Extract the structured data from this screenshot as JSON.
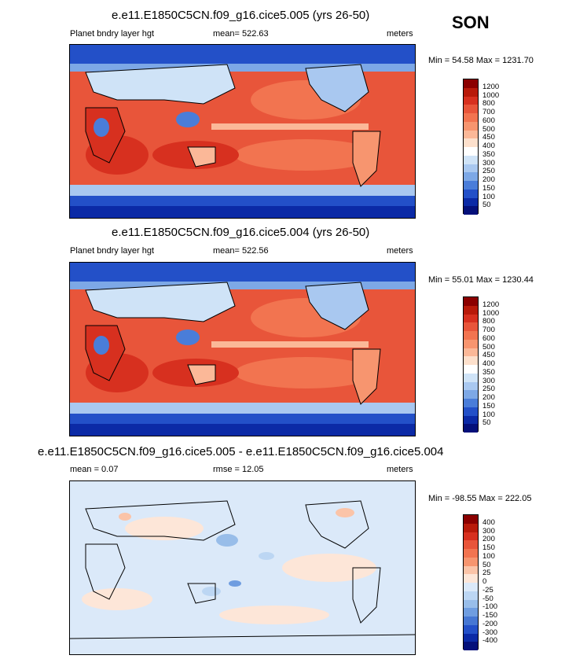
{
  "season": "SON",
  "panels": [
    {
      "title": "e.e11.E1850C5CN.f09_g16.cice5.005 (yrs 26-50)",
      "left_label": "Planet bndry layer hgt",
      "center_label": "mean= 522.63",
      "right_label": "meters",
      "minmax": "Min =  54.58 Max = 1231.70",
      "colorbar": {
        "levels": [
          "1200",
          "1000",
          "800",
          "700",
          "600",
          "500",
          "450",
          "400",
          "350",
          "300",
          "250",
          "200",
          "150",
          "100",
          "50"
        ],
        "colors": [
          "#8b0000",
          "#b81a0a",
          "#d7301f",
          "#e8553a",
          "#f27450",
          "#f7956f",
          "#fbb898",
          "#fde0cc",
          "#ffffff",
          "#cfe3f7",
          "#a9c8f0",
          "#7da8e6",
          "#4a7dd9",
          "#2350c8",
          "#0b2aa6",
          "#04107a"
        ]
      }
    },
    {
      "title": "e.e11.E1850C5CN.f09_g16.cice5.004 (yrs 26-50)",
      "left_label": "Planet bndry layer hgt",
      "center_label": "mean= 522.56",
      "right_label": "meters",
      "minmax": "Min =  55.01 Max = 1230.44",
      "colorbar": {
        "levels": [
          "1200",
          "1000",
          "800",
          "700",
          "600",
          "500",
          "450",
          "400",
          "350",
          "300",
          "250",
          "200",
          "150",
          "100",
          "50"
        ],
        "colors": [
          "#8b0000",
          "#b81a0a",
          "#d7301f",
          "#e8553a",
          "#f27450",
          "#f7956f",
          "#fbb898",
          "#fde0cc",
          "#ffffff",
          "#cfe3f7",
          "#a9c8f0",
          "#7da8e6",
          "#4a7dd9",
          "#2350c8",
          "#0b2aa6",
          "#04107a"
        ]
      }
    },
    {
      "title": "e.e11.E1850C5CN.f09_g16.cice5.005 - e.e11.E1850C5CN.f09_g16.cice5.004",
      "left_label": "mean =   0.07",
      "center_label": "rmse =  12.05",
      "right_label": "meters",
      "minmax": "Min = -98.55 Max = 222.05",
      "colorbar": {
        "levels": [
          "400",
          "300",
          "200",
          "150",
          "100",
          "50",
          "25",
          "0",
          "-25",
          "-50",
          "-100",
          "-150",
          "-200",
          "-300",
          "-400"
        ],
        "colors": [
          "#8b0000",
          "#b81a0a",
          "#d7301f",
          "#e8553a",
          "#f27450",
          "#f7956f",
          "#fbc4a8",
          "#fde6d8",
          "#dbe9f9",
          "#bcd6f3",
          "#98bde9",
          "#6f9de0",
          "#4677d3",
          "#2350c8",
          "#0b2aa6",
          "#04107a"
        ]
      }
    }
  ]
}
